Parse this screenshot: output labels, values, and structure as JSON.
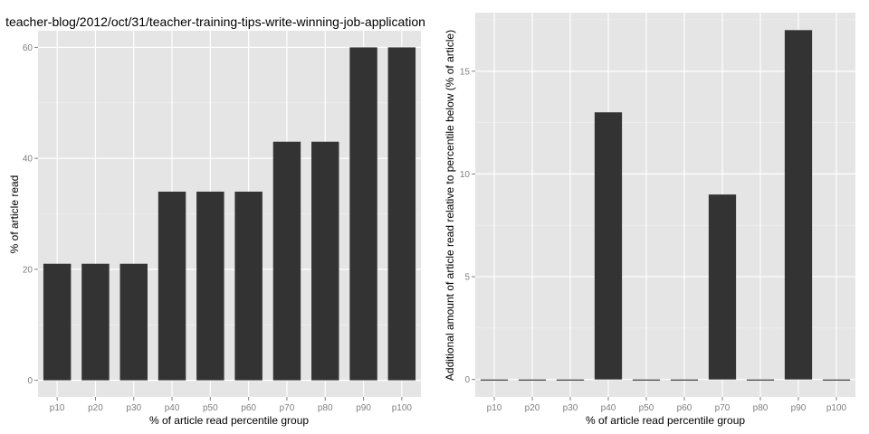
{
  "chart_data": [
    {
      "type": "bar",
      "title": "teacher-blog/2012/oct/31/teacher-training-tips-write-winning-job-application",
      "xlabel": "% of article read percentile group",
      "ylabel": "% of article read",
      "categories": [
        "p10",
        "p20",
        "p30",
        "p40",
        "p50",
        "p60",
        "p70",
        "p80",
        "p90",
        "p100"
      ],
      "values": [
        21,
        21,
        21,
        34,
        34,
        34,
        43,
        43,
        60,
        60
      ],
      "yticks": [
        0,
        20,
        40,
        60
      ],
      "ylim": [
        -3,
        63
      ],
      "grid": true,
      "bar_color": "#333333",
      "panel_color": "#e5e5e5"
    },
    {
      "type": "bar",
      "title": "",
      "xlabel": "% of article read percentile group",
      "ylabel": "Additional amount of article read relative to percentile below (% of article)",
      "categories": [
        "p10",
        "p20",
        "p30",
        "p40",
        "p50",
        "p60",
        "p70",
        "p80",
        "p90",
        "p100"
      ],
      "values": [
        0,
        0,
        0,
        13,
        0,
        0,
        9,
        0,
        17,
        0
      ],
      "yticks": [
        0,
        5,
        10,
        15
      ],
      "ylim": [
        -0.85,
        17.85
      ],
      "grid": true,
      "bar_color": "#333333",
      "panel_color": "#e5e5e5"
    }
  ]
}
